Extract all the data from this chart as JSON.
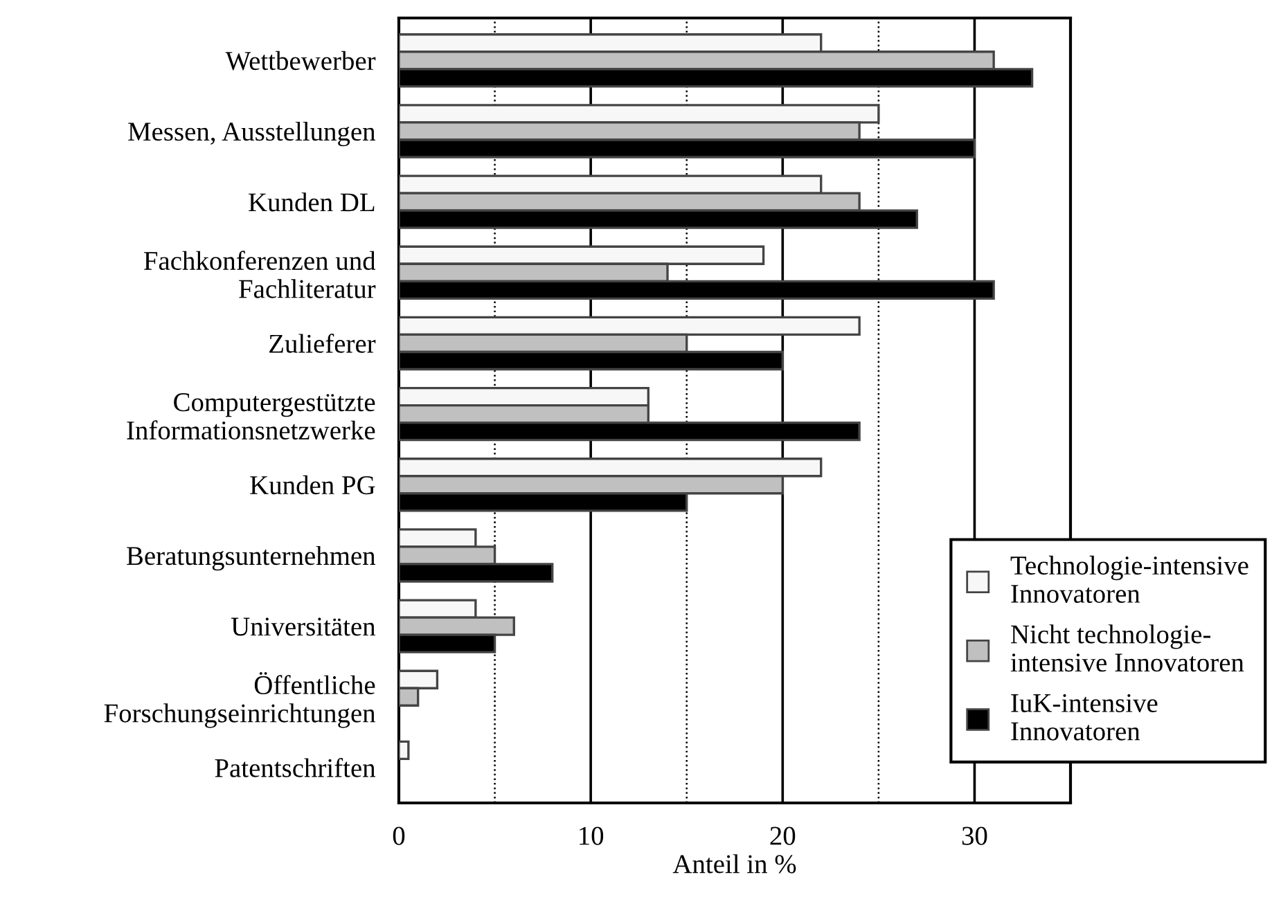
{
  "chart_data": {
    "type": "bar",
    "orientation": "horizontal",
    "xlabel": "Anteil in %",
    "categories": [
      "Wettbewerber",
      "Messen, Ausstellungen",
      "Kunden DL",
      "Fachkonferenzen und\nFachliteratur",
      "Zulieferer",
      "Computergestützte\nInformationsnetzwerke",
      "Kunden PG",
      "Beratungsunternehmen",
      "Universitäten",
      "Öffentliche\nForschungseinrichtungen",
      "Patentschriften"
    ],
    "series": [
      {
        "name": "Technologie-intensive\nInnovatoren",
        "color": "#f7f7f7",
        "values": [
          22,
          25,
          22,
          19,
          24,
          13,
          22,
          4,
          4,
          2,
          0.5
        ]
      },
      {
        "name": "Nicht technologie-\nintensive Innovatoren",
        "color": "#c0c0c0",
        "values": [
          31,
          24,
          24,
          14,
          15,
          13,
          20,
          5,
          6,
          1,
          0
        ]
      },
      {
        "name": "IuK-intensive\nInnovatoren",
        "color": "#000000",
        "values": [
          33,
          30,
          27,
          31,
          20,
          24,
          15,
          8,
          5,
          0,
          0
        ]
      }
    ],
    "xlim": [
      0,
      35
    ],
    "xticks": [
      0,
      {
        "value": 5,
        "label": null
      },
      10,
      {
        "value": 15,
        "label": null
      },
      20,
      {
        "value": 25,
        "label": null
      },
      30
    ],
    "grid": "x",
    "legend": "bottom right"
  }
}
